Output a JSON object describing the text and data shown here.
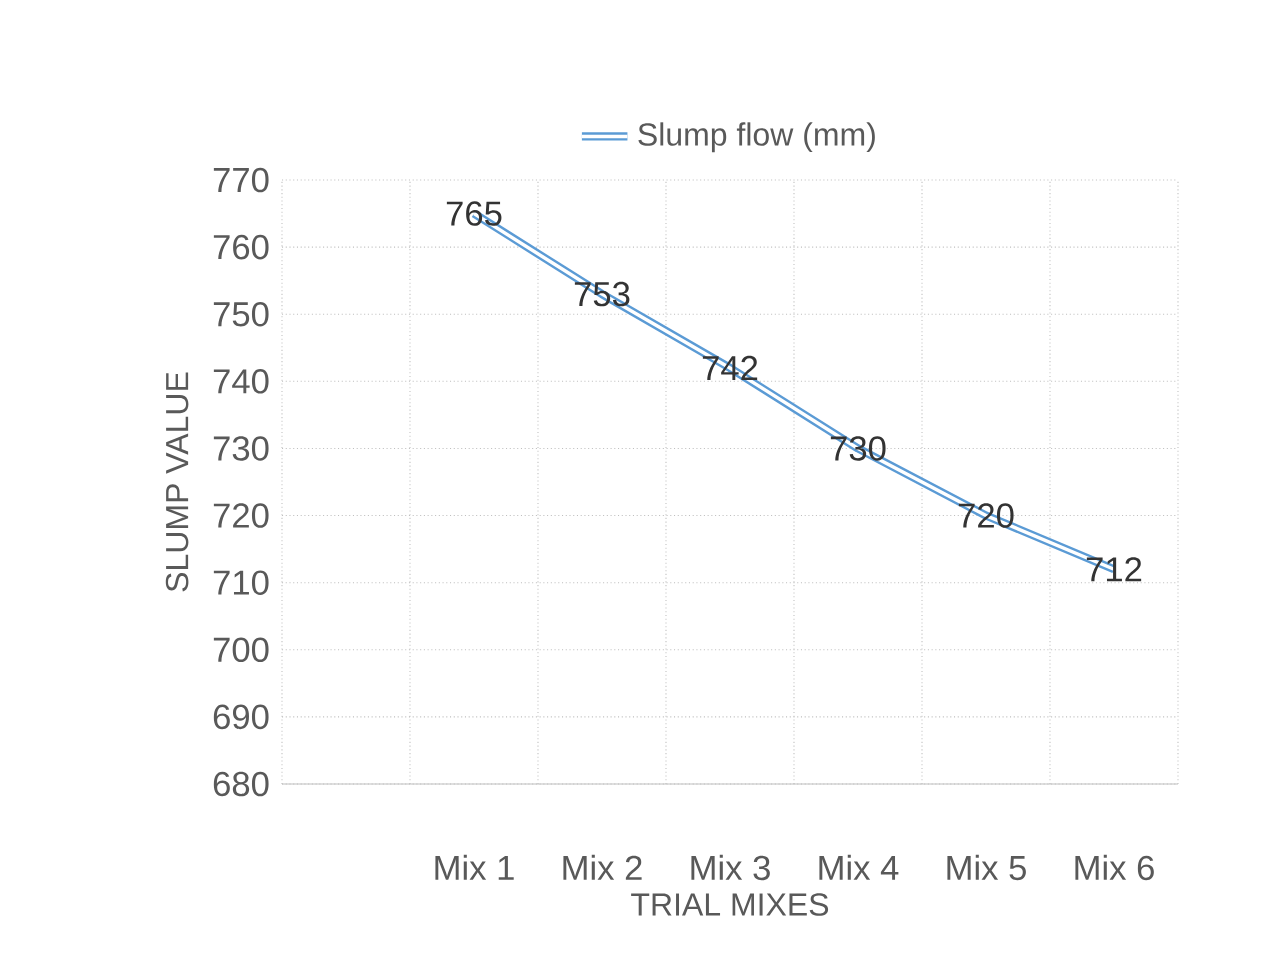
{
  "chart_data": {
    "type": "line",
    "xlabel": "TRIAL MIXES",
    "ylabel": "SLUMP VALUE",
    "categories": [
      null,
      "Mix 1",
      "Mix 2",
      "Mix 3",
      "Mix 4",
      "Mix 5",
      "Mix 6"
    ],
    "series": [
      {
        "name": "Slump flow (mm)",
        "color": "#5b9bd5",
        "values": [
          null,
          765,
          753,
          742,
          730,
          720,
          712
        ]
      }
    ],
    "ylim": [
      680,
      770
    ],
    "yticks": [
      680,
      690,
      700,
      710,
      720,
      730,
      740,
      750,
      760,
      770
    ],
    "grid": true,
    "legend": "top",
    "data_labels": true,
    "marker": "none",
    "line_style": "solid"
  }
}
